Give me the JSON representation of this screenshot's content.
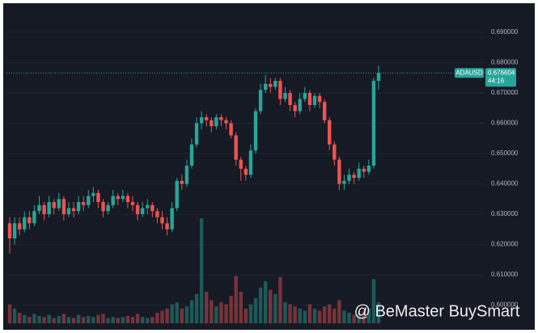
{
  "chart_data": {
    "type": "candlestick",
    "symbol": "ADAUSD",
    "last_price": 0.676604,
    "countdown": "44:16",
    "watermark": "@ BeMaster BuySmart",
    "up_color": "#26a69a",
    "down_color": "#ef5350",
    "ylim": [
      0.594,
      0.698
    ],
    "yticks": [
      {
        "value": 0.6,
        "label": "0.600000"
      },
      {
        "value": 0.61,
        "label": "0.610000"
      },
      {
        "value": 0.62,
        "label": "0.620000"
      },
      {
        "value": 0.63,
        "label": "0.630000"
      },
      {
        "value": 0.64,
        "label": "0.640000"
      },
      {
        "value": 0.65,
        "label": "0.650000"
      },
      {
        "value": 0.66,
        "label": "0.660000"
      },
      {
        "value": 0.67,
        "label": "0.670000"
      },
      {
        "value": 0.68,
        "label": "0.680000"
      },
      {
        "value": 0.69,
        "label": "0.690000"
      }
    ],
    "candles": [
      [
        0.627,
        0.629,
        0.617,
        0.622
      ],
      [
        0.622,
        0.629,
        0.62,
        0.627
      ],
      [
        0.627,
        0.629,
        0.623,
        0.625
      ],
      [
        0.625,
        0.631,
        0.624,
        0.629
      ],
      [
        0.629,
        0.631,
        0.625,
        0.627
      ],
      [
        0.627,
        0.633,
        0.626,
        0.631
      ],
      [
        0.631,
        0.636,
        0.63,
        0.633
      ],
      [
        0.633,
        0.634,
        0.628,
        0.63
      ],
      [
        0.63,
        0.636,
        0.629,
        0.634
      ],
      [
        0.634,
        0.635,
        0.63,
        0.632
      ],
      [
        0.632,
        0.637,
        0.631,
        0.635
      ],
      [
        0.635,
        0.636,
        0.628,
        0.63
      ],
      [
        0.63,
        0.634,
        0.629,
        0.632
      ],
      [
        0.632,
        0.634,
        0.629,
        0.631
      ],
      [
        0.631,
        0.636,
        0.63,
        0.634
      ],
      [
        0.634,
        0.636,
        0.631,
        0.633
      ],
      [
        0.633,
        0.638,
        0.632,
        0.636
      ],
      [
        0.636,
        0.639,
        0.634,
        0.637
      ],
      [
        0.637,
        0.638,
        0.632,
        0.634
      ],
      [
        0.634,
        0.635,
        0.629,
        0.631
      ],
      [
        0.631,
        0.634,
        0.63,
        0.633
      ],
      [
        0.633,
        0.638,
        0.632,
        0.636
      ],
      [
        0.636,
        0.637,
        0.633,
        0.635
      ],
      [
        0.635,
        0.638,
        0.634,
        0.636
      ],
      [
        0.636,
        0.637,
        0.632,
        0.634
      ],
      [
        0.634,
        0.636,
        0.631,
        0.633
      ],
      [
        0.633,
        0.634,
        0.628,
        0.63
      ],
      [
        0.63,
        0.634,
        0.629,
        0.632
      ],
      [
        0.632,
        0.635,
        0.63,
        0.633
      ],
      [
        0.633,
        0.634,
        0.629,
        0.631
      ],
      [
        0.631,
        0.632,
        0.627,
        0.629
      ],
      [
        0.629,
        0.631,
        0.625,
        0.627
      ],
      [
        0.627,
        0.629,
        0.623,
        0.625
      ],
      [
        0.625,
        0.634,
        0.624,
        0.632
      ],
      [
        0.632,
        0.642,
        0.631,
        0.641
      ],
      [
        0.641,
        0.643,
        0.638,
        0.64
      ],
      [
        0.64,
        0.648,
        0.639,
        0.646
      ],
      [
        0.646,
        0.655,
        0.645,
        0.653
      ],
      [
        0.653,
        0.662,
        0.652,
        0.66
      ],
      [
        0.66,
        0.664,
        0.658,
        0.662
      ],
      [
        0.662,
        0.663,
        0.659,
        0.661
      ],
      [
        0.661,
        0.662,
        0.657,
        0.659
      ],
      [
        0.659,
        0.663,
        0.658,
        0.662
      ],
      [
        0.662,
        0.663,
        0.659,
        0.661
      ],
      [
        0.661,
        0.662,
        0.658,
        0.66
      ],
      [
        0.66,
        0.661,
        0.655,
        0.656
      ],
      [
        0.656,
        0.657,
        0.646,
        0.648
      ],
      [
        0.648,
        0.649,
        0.641,
        0.645
      ],
      [
        0.645,
        0.646,
        0.641,
        0.643
      ],
      [
        0.643,
        0.653,
        0.642,
        0.651
      ],
      [
        0.651,
        0.665,
        0.65,
        0.664
      ],
      [
        0.664,
        0.673,
        0.663,
        0.671
      ],
      [
        0.671,
        0.676,
        0.67,
        0.673
      ],
      [
        0.673,
        0.675,
        0.67,
        0.672
      ],
      [
        0.672,
        0.675,
        0.671,
        0.674
      ],
      [
        0.674,
        0.675,
        0.666,
        0.668
      ],
      [
        0.668,
        0.672,
        0.667,
        0.67
      ],
      [
        0.67,
        0.671,
        0.664,
        0.666
      ],
      [
        0.666,
        0.667,
        0.662,
        0.664
      ],
      [
        0.664,
        0.67,
        0.663,
        0.668
      ],
      [
        0.668,
        0.672,
        0.667,
        0.67
      ],
      [
        0.67,
        0.671,
        0.664,
        0.666
      ],
      [
        0.666,
        0.67,
        0.665,
        0.669
      ],
      [
        0.669,
        0.67,
        0.665,
        0.667
      ],
      [
        0.667,
        0.668,
        0.66,
        0.661
      ],
      [
        0.661,
        0.662,
        0.651,
        0.653
      ],
      [
        0.653,
        0.654,
        0.646,
        0.648
      ],
      [
        0.648,
        0.649,
        0.638,
        0.64
      ],
      [
        0.64,
        0.643,
        0.638,
        0.641
      ],
      [
        0.641,
        0.645,
        0.64,
        0.643
      ],
      [
        0.643,
        0.644,
        0.64,
        0.642
      ],
      [
        0.642,
        0.647,
        0.641,
        0.645
      ],
      [
        0.645,
        0.646,
        0.642,
        0.644
      ],
      [
        0.644,
        0.648,
        0.643,
        0.646
      ],
      [
        0.646,
        0.675,
        0.645,
        0.674
      ],
      [
        0.674,
        0.679,
        0.671,
        0.6766
      ]
    ],
    "volumes": [
      18,
      14,
      10,
      8,
      6,
      9,
      7,
      6,
      8,
      5,
      7,
      9,
      6,
      5,
      8,
      6,
      7,
      6,
      8,
      9,
      5,
      6,
      5,
      6,
      7,
      6,
      9,
      6,
      5,
      6,
      10,
      12,
      14,
      18,
      20,
      14,
      16,
      22,
      28,
      100,
      30,
      22,
      16,
      20,
      18,
      26,
      45,
      30,
      14,
      18,
      24,
      34,
      40,
      32,
      28,
      44,
      20,
      18,
      16,
      14,
      12,
      18,
      14,
      12,
      16,
      18,
      14,
      22,
      12,
      10,
      8,
      10,
      12,
      14,
      42,
      20
    ]
  }
}
